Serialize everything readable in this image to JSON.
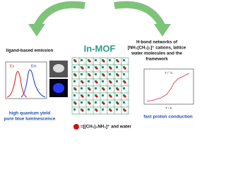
{
  "header": {
    "title": "In-MOF"
  },
  "left": {
    "caption": "ligand-based emission",
    "legend": [
      "Ex",
      "Em"
    ],
    "highlights": [
      "high quantum yield",
      "pure blue luminescence"
    ]
  },
  "right": {
    "caption_lines": [
      "H-bond networks of",
      "[NH₂(CH₃)₂]⁺ cations, lattice",
      "water molecules and the",
      "framework"
    ],
    "plot_top_label": "T / °C",
    "plot_x_label": "T / K",
    "highlight": "fast proton conduction"
  },
  "bottom": {
    "legend": "=[(CH₃)₂NH₂]⁺ and water"
  }
}
